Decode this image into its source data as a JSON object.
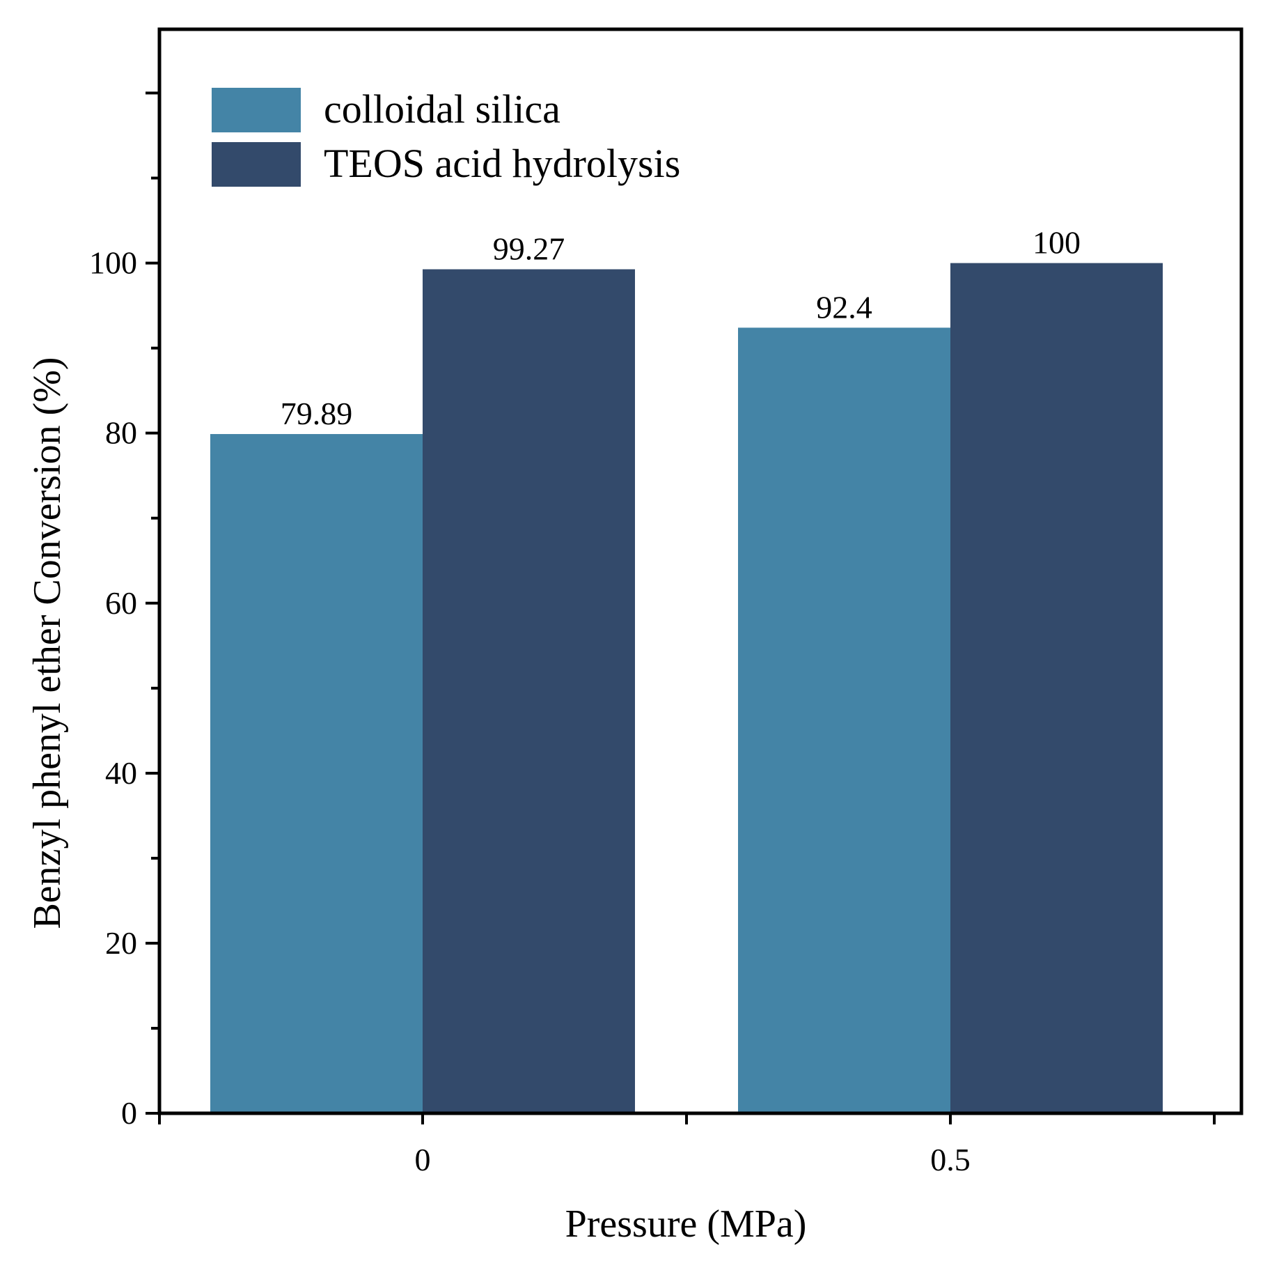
{
  "chart_data": {
    "type": "bar",
    "xlabel": "Pressure (MPa)",
    "ylabel": "Benzyl phenyl ether Conversion (%)",
    "categories": [
      "0",
      "0.5"
    ],
    "series": [
      {
        "name": "colloidal silica",
        "values": [
          79.89,
          92.4
        ],
        "labels": [
          "79.89",
          "92.4"
        ],
        "color": "#4484A6"
      },
      {
        "name": "TEOS acid hydrolysis",
        "values": [
          99.27,
          100
        ],
        "labels": [
          "99.27",
          "100"
        ],
        "color": "#334A6B"
      }
    ],
    "ylim": [
      0,
      127.5
    ],
    "yticks": [
      0,
      20,
      40,
      60,
      80,
      100
    ],
    "grid": false,
    "legend": "top-left"
  }
}
